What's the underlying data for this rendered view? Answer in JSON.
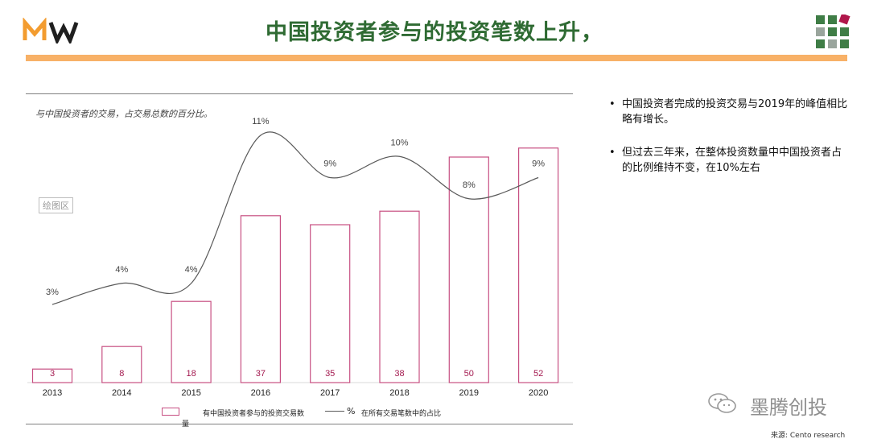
{
  "header": {
    "title": "中国投资者参与的投资笔数上升，",
    "brand_colors": {
      "title": "#2f6b33",
      "accent_bar": "#f8b167",
      "logo_orange": "#f39c2f",
      "logo_dark": "#1f1f1f",
      "grid_green": "#3f7d46",
      "grid_gray": "#9aa59d",
      "grid_red": "#b0174b"
    }
  },
  "chart": {
    "subtitle": "与中国投资者的交易，占交易总数的百分比。",
    "plot_area_tag": "绘图区",
    "legend": {
      "bar_label": "有中国投资者参与的投资交易数",
      "bar_label_wrap": "量",
      "line_symbol": "%",
      "line_label": "在所有交易笔数中的占比"
    }
  },
  "chart_data": {
    "type": "bar",
    "categories": [
      "2013",
      "2014",
      "2015",
      "2016",
      "2017",
      "2018",
      "2019",
      "2020"
    ],
    "series": [
      {
        "name": "有中国投资者参与的投资交易数量",
        "type": "bar",
        "values": [
          3,
          8,
          18,
          37,
          35,
          38,
          50,
          52
        ],
        "labels": [
          "3",
          "8",
          "18",
          "37",
          "35",
          "38",
          "50",
          "52"
        ],
        "color": "#c74f82"
      },
      {
        "name": "在所有交易笔数中的占比",
        "type": "line",
        "values": [
          3,
          4,
          4,
          11,
          9,
          10,
          8,
          9
        ],
        "labels": [
          "3%",
          "4%",
          "4%",
          "11%",
          "9%",
          "10%",
          "8%",
          "9%"
        ],
        "color": "#595959"
      }
    ],
    "legend_position": "bottom",
    "grid": false
  },
  "bullets": [
    "中国投资者完成的投资交易与2019年的峰值相比略有增长。",
    "但过去三年来，在整体投资数量中中国投资者占的比例维持不变，在10%左右"
  ],
  "bullet_symbol": "•",
  "watermark": {
    "text": "墨腾创投",
    "icon": "wechat-icon"
  },
  "source": "来源: Cento research"
}
